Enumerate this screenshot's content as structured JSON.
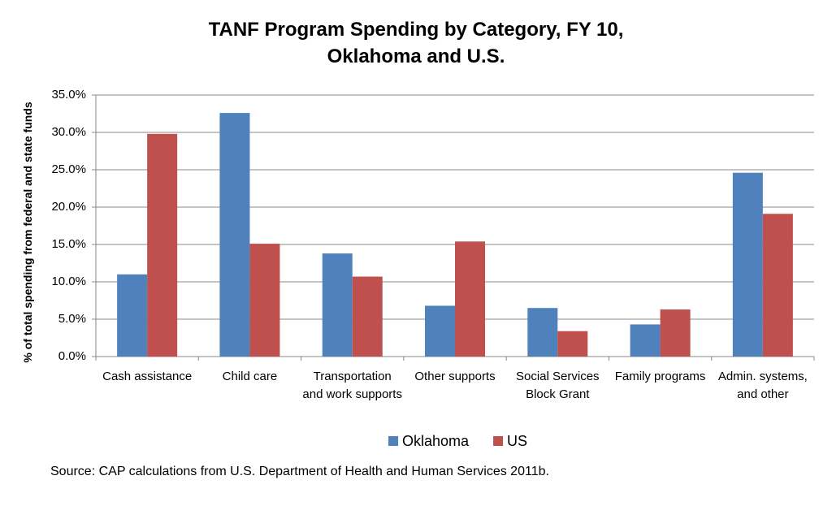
{
  "chart_data": {
    "type": "bar",
    "title": "TANF Program Spending by Category, FY 10, Oklahoma and U.S.",
    "y_label": "% of total spending from federal and state funds",
    "source": "Source: CAP calculations from U.S. Department of Health and Human Services 2011b.",
    "categories": [
      "Cash assistance",
      "Child care",
      "Transportation and work supports",
      "Other supports",
      "Social Services Block Grant",
      "Family programs",
      "Admin. systems, and other"
    ],
    "series": [
      {
        "name": "Oklahoma",
        "color": "#4f81bd",
        "values": [
          11.0,
          32.6,
          13.8,
          6.8,
          6.5,
          4.3,
          24.6
        ]
      },
      {
        "name": "US",
        "color": "#c0504d",
        "values": [
          29.8,
          15.1,
          10.7,
          15.4,
          3.4,
          6.3,
          19.1
        ]
      }
    ],
    "ylim": [
      0,
      35
    ],
    "yticks": [
      {
        "value": 0,
        "label": "0.0%"
      },
      {
        "value": 5,
        "label": "5.0%"
      },
      {
        "value": 10,
        "label": "10.0%"
      },
      {
        "value": 15,
        "label": "15.0%"
      },
      {
        "value": 20,
        "label": "20.0%"
      },
      {
        "value": 25,
        "label": "25.0%"
      },
      {
        "value": 30,
        "label": "30.0%"
      },
      {
        "value": 35,
        "label": "35.0%"
      }
    ],
    "grid": true,
    "legend": "bottom"
  }
}
